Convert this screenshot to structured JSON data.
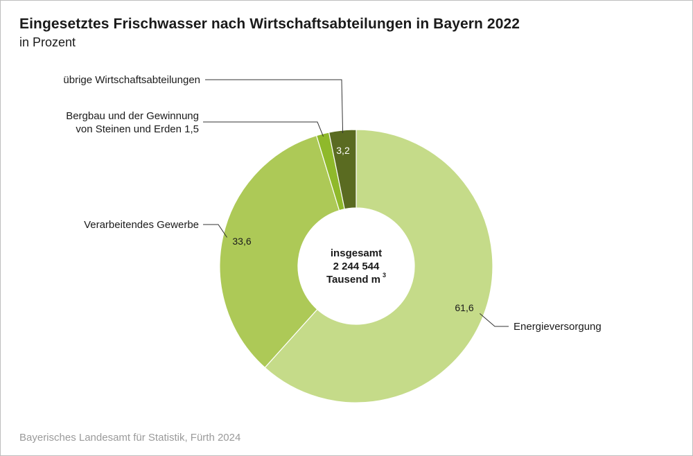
{
  "title": "Eingesetztes Frischwasser nach Wirtschaftsabteilungen in Bayern 2022",
  "subtitle": "in Prozent",
  "source": "Bayerisches Landesamt für Statistik, Fürth 2024",
  "center": {
    "line1": "insgesamt",
    "line2": "2 244 544",
    "line3": "Tausend m",
    "sup": "3"
  },
  "colors": {
    "energie": "#c5db89",
    "verarbeitend": "#adc957",
    "bergbau": "#8fb92b",
    "uebrige": "#5a6b21",
    "leader": "#333333",
    "separator": "#ffffff"
  },
  "chart_data": {
    "type": "pie",
    "style": "donut",
    "slices": [
      {
        "label": "Energieversorgung",
        "value": 61.6,
        "value_label": "61,6"
      },
      {
        "label": "Verarbeitendes Gewerbe",
        "value": 33.6,
        "value_label": "33,6"
      },
      {
        "label": "Bergbau und der Gewinnung von Steinen und Erden 1,5",
        "label_lines": [
          "Bergbau und der Gewinnung",
          "von Steinen und Erden 1,5"
        ],
        "value": 1.5,
        "value_label": ""
      },
      {
        "label": "übrige Wirtschaftsabteilungen",
        "value": 3.2,
        "value_label": "3,2"
      }
    ]
  }
}
